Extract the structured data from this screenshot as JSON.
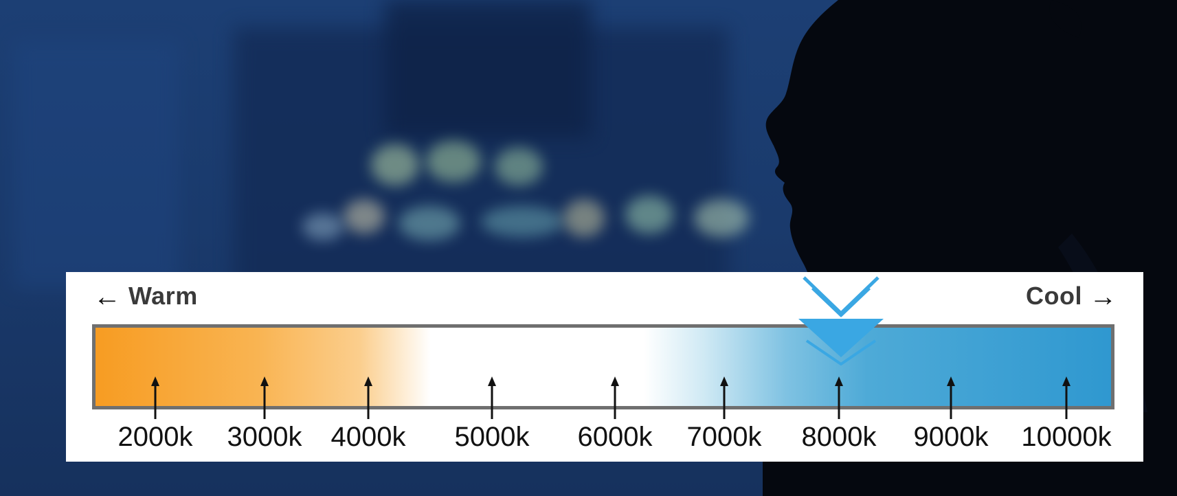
{
  "scale": {
    "warm_label": "Warm",
    "cool_label": "Cool",
    "warm_arrow": "←",
    "cool_arrow": "→",
    "ticks": [
      "2000k",
      "3000k",
      "4000k",
      "5000k",
      "6000k",
      "7000k",
      "8000k",
      "9000k",
      "10000k"
    ],
    "selected": "8000k"
  },
  "colors": {
    "warm": "#f79c22",
    "neutral": "#ffffff",
    "cool": "#2f98d0",
    "marker": "#3aa7e3",
    "bar_border": "#6f6f6f"
  },
  "icons": {
    "marker": "double-chevron-down-icon",
    "warm_arrow": "arrow-left-icon",
    "cool_arrow": "arrow-right-icon"
  }
}
